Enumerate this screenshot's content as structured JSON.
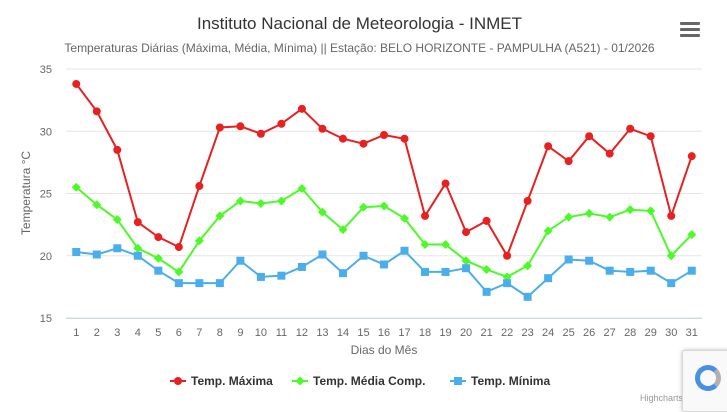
{
  "header": {
    "title": "Instituto Nacional de Meteorologia - INMET",
    "subtitle": "Temperaturas Diárias (Máxima, Média, Mínima) || Estação: BELO HORIZONTE - PAMPULHA (A521) - 01/2026"
  },
  "menu": {
    "icon": "hamburger-menu-icon"
  },
  "credits": "Highcharts.com",
  "chart_data": {
    "type": "line",
    "title": "Instituto Nacional de Meteorologia - INMET",
    "subtitle": "Temperaturas Diárias (Máxima, Média, Mínima) || Estação: BELO HORIZONTE - PAMPULHA (A521) - 01/2026",
    "xlabel": "Dias do Mês",
    "ylabel": "Temperatura °C",
    "ylim": [
      15,
      35
    ],
    "yticks": [
      15,
      20,
      25,
      30,
      35
    ],
    "grid": true,
    "legend_position": "bottom-center",
    "categories": [
      "1",
      "2",
      "3",
      "4",
      "5",
      "6",
      "7",
      "8",
      "9",
      "10",
      "11",
      "12",
      "13",
      "14",
      "15",
      "16",
      "17",
      "18",
      "19",
      "20",
      "21",
      "22",
      "23",
      "24",
      "25",
      "26",
      "27",
      "28",
      "29",
      "30",
      "31"
    ],
    "series": [
      {
        "name": "Temp. Máxima",
        "color": "#e8201f",
        "marker": "circle",
        "values": [
          33.8,
          31.6,
          28.5,
          22.7,
          21.5,
          20.7,
          25.6,
          30.3,
          30.4,
          29.8,
          30.6,
          31.8,
          30.2,
          29.4,
          29.0,
          29.7,
          29.4,
          23.2,
          25.8,
          21.9,
          22.8,
          20.0,
          24.4,
          28.8,
          27.6,
          29.6,
          28.2,
          30.2,
          29.6,
          23.2,
          28.0
        ]
      },
      {
        "name": "Temp. Média Comp.",
        "color": "#4cfa27",
        "marker": "diamond",
        "values": [
          25.5,
          24.1,
          22.9,
          20.6,
          19.8,
          18.7,
          21.2,
          23.2,
          24.4,
          24.2,
          24.4,
          25.4,
          23.5,
          22.1,
          23.9,
          24.0,
          23.0,
          20.9,
          20.9,
          19.6,
          18.9,
          18.3,
          19.2,
          22.0,
          23.1,
          23.4,
          23.1,
          23.7,
          23.6,
          20.0,
          21.7
        ]
      },
      {
        "name": "Temp. Mínima",
        "color": "#4aaeec",
        "marker": "square",
        "values": [
          20.3,
          20.1,
          20.6,
          20.0,
          18.8,
          17.8,
          17.8,
          17.8,
          19.6,
          18.3,
          18.4,
          19.1,
          20.1,
          18.6,
          20.0,
          19.3,
          20.4,
          18.7,
          18.7,
          19.0,
          17.1,
          17.8,
          16.7,
          18.2,
          19.7,
          19.6,
          18.8,
          18.7,
          18.8,
          17.8,
          18.8
        ]
      }
    ]
  }
}
